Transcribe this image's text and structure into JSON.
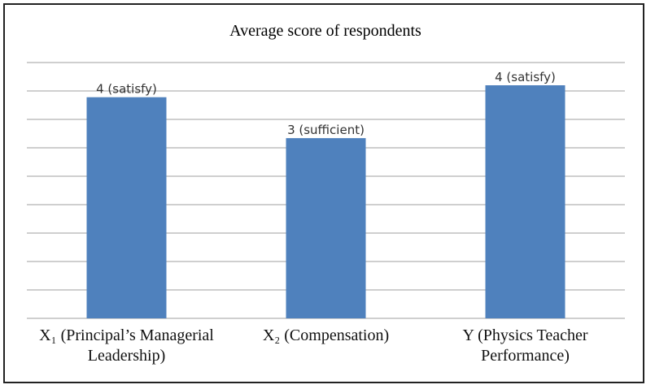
{
  "chart_data": {
    "type": "bar",
    "title": "Average score of respondents",
    "categories": [
      "X₁ (Principal’s Managerial Leadership)",
      "X₂ (Compensation)",
      "Y (Physics Teacher Performance)"
    ],
    "values": [
      3.89,
      3.17,
      4.1
    ],
    "value_labels": [
      "4 (satisfy)",
      "3 (sufficient)",
      "4 (satisfy)"
    ],
    "color": "#4f81bd",
    "ylim": [
      0,
      4.5
    ],
    "yticks": [
      0,
      0.5,
      1,
      1.5,
      2,
      2.5,
      3,
      3.5,
      4,
      4.5
    ],
    "grid": true
  }
}
